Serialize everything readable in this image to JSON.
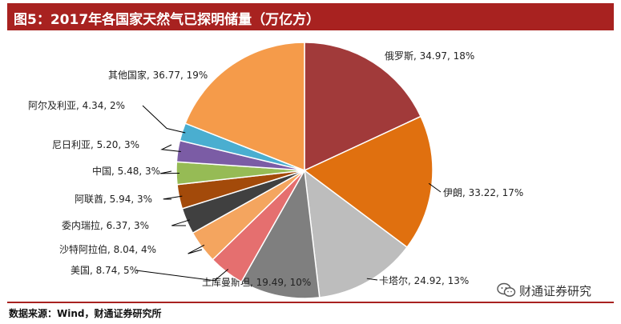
{
  "header": {
    "title": "图5：2017年各国家天然气已探明储量（万亿方）"
  },
  "source": "数据来源：Wind，财通证券研究所",
  "watermark": {
    "text": "财通证券研究",
    "icon": "wechat-icon"
  },
  "chart_data": {
    "type": "pie",
    "title": "",
    "slices": [
      {
        "name": "俄罗斯",
        "value": 34.97,
        "percent": "18%",
        "color": "#a13a3a"
      },
      {
        "name": "伊朗",
        "value": 33.22,
        "percent": "17%",
        "color": "#e0700f"
      },
      {
        "name": "卡塔尔",
        "value": 24.92,
        "percent": "13%",
        "color": "#bdbdbd"
      },
      {
        "name": "土库曼斯坦",
        "value": 19.49,
        "percent": "10%",
        "color": "#7f7f7f"
      },
      {
        "name": "美国",
        "value": 8.74,
        "percent": "5%",
        "color": "#e56f6f"
      },
      {
        "name": "沙特阿拉伯",
        "value": 8.04,
        "percent": "4%",
        "color": "#f4a55f"
      },
      {
        "name": "委内瑞拉",
        "value": 6.37,
        "percent": "3%",
        "color": "#404040"
      },
      {
        "name": "阿联酋",
        "value": 5.94,
        "percent": "3%",
        "color": "#a34a0a"
      },
      {
        "name": "中国",
        "value": 5.48,
        "percent": "3%",
        "color": "#96bb55"
      },
      {
        "name": "尼日利亚",
        "value": 5.2,
        "percent": "3%",
        "color": "#7b5ca5"
      },
      {
        "name": "阿尔及利亚",
        "value": 4.34,
        "percent": "2%",
        "color": "#4aaed0"
      },
      {
        "name": "其他国家",
        "value": 36.77,
        "percent": "19%",
        "color": "#f59b4a"
      }
    ]
  }
}
